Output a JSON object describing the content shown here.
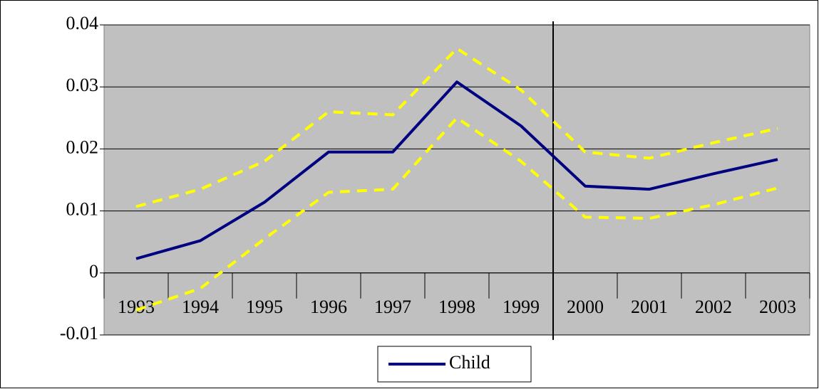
{
  "chart_data": {
    "type": "line",
    "categories": [
      "1993",
      "1994",
      "1995",
      "1996",
      "1997",
      "1998",
      "1999",
      "2000",
      "2001",
      "2002",
      "2003"
    ],
    "series": [
      {
        "name": "Child",
        "color": "#000080",
        "values": [
          0.0023,
          0.0052,
          0.0114,
          0.0195,
          0.0195,
          0.0308,
          0.0237,
          0.014,
          0.0135,
          0.016,
          0.0183
        ]
      },
      {
        "color": "#ffff00",
        "values": [
          0.0107,
          0.0135,
          0.018,
          0.026,
          0.0255,
          0.0362,
          0.0295,
          0.0195,
          0.0185,
          0.021,
          0.0233
        ]
      },
      {
        "color": "#ffff00",
        "values": [
          -0.006,
          -0.0025,
          0.0055,
          0.013,
          0.0135,
          0.025,
          0.018,
          0.009,
          0.0088,
          0.011,
          0.0137
        ]
      }
    ],
    "ylim": [
      -0.01,
      0.04
    ],
    "yticks": [
      -0.01,
      0,
      0.01,
      0.02,
      0.03,
      0.04
    ],
    "grid": true,
    "legend": "bottom"
  }
}
